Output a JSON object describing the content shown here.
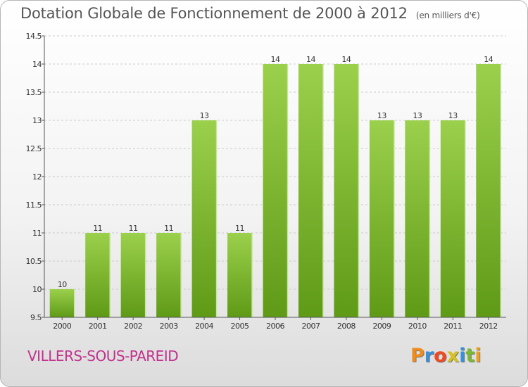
{
  "header": {
    "title": "Dotation Globale de Fonctionnement de 2000 à 2012",
    "unit": "(en milliers d'€)"
  },
  "footer": {
    "place": "VILLERS-SOUS-PAREID",
    "brand_letters": [
      "P",
      "r",
      "o",
      "x",
      "i",
      "t",
      "i"
    ],
    "brand_colors": [
      "#f08c1c",
      "#3b8fd6",
      "#ef4a23",
      "#d5c11e",
      "#3b8fd6",
      "#78b832",
      "#f0a020"
    ]
  },
  "colors": {
    "bar_light": "#9bd04c",
    "bar_dark": "#5f9a16",
    "grid": "#cccccc",
    "axis": "#555555",
    "place": "#c1318d"
  },
  "chart_data": {
    "type": "bar",
    "title": "Dotation Globale de Fonctionnement de 2000 à 2012",
    "subtitle": "(en milliers d'€)",
    "xlabel": "",
    "ylabel": "",
    "categories": [
      "2000",
      "2001",
      "2002",
      "2003",
      "2004",
      "2005",
      "2006",
      "2007",
      "2008",
      "2009",
      "2010",
      "2011",
      "2012"
    ],
    "values": [
      10,
      11,
      11,
      11,
      13,
      11,
      14,
      14,
      14,
      13,
      13,
      13,
      14
    ],
    "ylim": [
      9.5,
      14.5
    ],
    "yticks": [
      "9.5",
      "10",
      "10.5",
      "11",
      "11.5",
      "12",
      "12.5",
      "13",
      "13.5",
      "14",
      "14.5"
    ],
    "grid": true,
    "legend": "none"
  }
}
